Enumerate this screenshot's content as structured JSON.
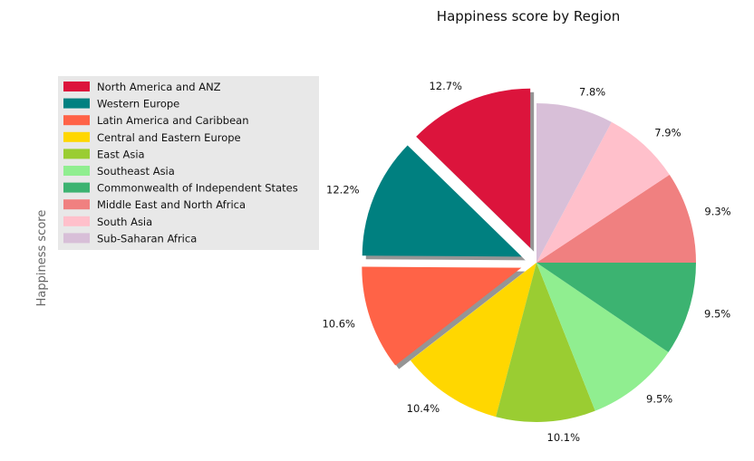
{
  "chart_data": {
    "type": "pie",
    "title": "Happiness score by Region",
    "ylabel": "Happiness score",
    "legend_position": "upper-left",
    "categories": [
      "North America and ANZ",
      "Western Europe",
      "Latin America and Caribbean",
      "Central and Eastern Europe",
      "East Asia",
      "Southeast Asia",
      "Commonwealth of Independent States",
      "Middle East and North Africa",
      "South Asia",
      "Sub-Saharan Africa"
    ],
    "values": [
      12.7,
      12.2,
      10.6,
      10.4,
      10.1,
      9.5,
      9.5,
      9.3,
      7.9,
      7.8
    ],
    "value_labels": [
      "12.7%",
      "12.2%",
      "10.6%",
      "10.4%",
      "10.1%",
      "9.5%",
      "9.5%",
      "9.3%",
      "7.9%",
      "7.8%"
    ],
    "exploded": [
      true,
      true,
      true,
      false,
      false,
      false,
      false,
      false,
      false,
      false
    ],
    "colors": [
      "#dc143c",
      "#008080",
      "#ff6347",
      "#ffd700",
      "#9acd32",
      "#90ee90",
      "#3cb371",
      "#f08080",
      "#ffc0cb",
      "#d8bfd8"
    ],
    "start_angle_deg": 90,
    "direction": "counterclockwise",
    "shadow": true
  }
}
